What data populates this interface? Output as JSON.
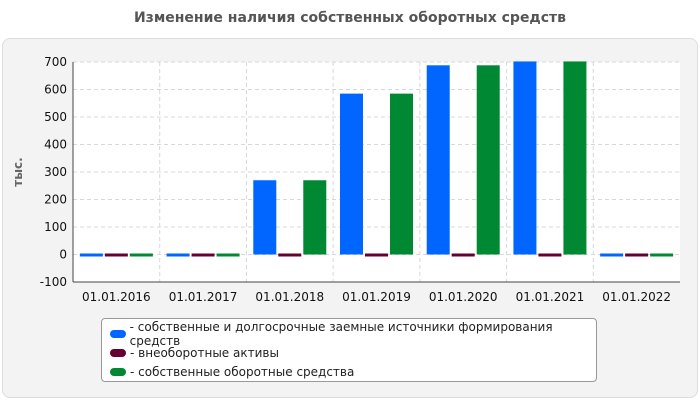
{
  "chart_data": {
    "type": "bar",
    "title": "Изменение наличия собственных оборотных средств",
    "ylabel": "тыс.",
    "xlabel": "",
    "ylim": [
      -100,
      700
    ],
    "yticks": [
      -100,
      0,
      100,
      200,
      300,
      400,
      500,
      600,
      700
    ],
    "grid": true,
    "legend_position": "bottom",
    "categories": [
      "01.01.2016",
      "01.01.2017",
      "01.01.2018",
      "01.01.2019",
      "01.01.2020",
      "01.01.2021",
      "01.01.2022"
    ],
    "series": [
      {
        "name": "- собственные и долгосрочные заемные источники формирования средств",
        "color": "#0066ff",
        "values": [
          0,
          0,
          270,
          585,
          688,
          702,
          0
        ]
      },
      {
        "name": "- внеоборотные активы",
        "color": "#660033",
        "values": [
          0,
          0,
          0,
          0,
          0,
          0,
          0
        ]
      },
      {
        "name": "- собственные оборотные средства",
        "color": "#008833",
        "values": [
          0,
          0,
          270,
          585,
          688,
          702,
          0
        ]
      }
    ]
  }
}
